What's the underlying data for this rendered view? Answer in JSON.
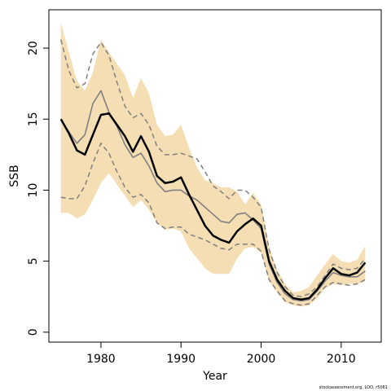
{
  "chart_data": {
    "type": "line",
    "xlabel": "Year",
    "ylabel": "SSB",
    "xlim": [
      1973.5,
      2015
    ],
    "ylim": [
      -0.7,
      22.7
    ],
    "x_ticks": [
      1980,
      1990,
      2000,
      2010
    ],
    "y_ticks": [
      0,
      5,
      10,
      15,
      20
    ],
    "x": [
      1975,
      1976,
      1977,
      1978,
      1979,
      1980,
      1981,
      1982,
      1983,
      1984,
      1985,
      1986,
      1987,
      1988,
      1989,
      1990,
      1991,
      1992,
      1993,
      1994,
      1995,
      1996,
      1997,
      1998,
      1999,
      2000,
      2001,
      2002,
      2003,
      2004,
      2005,
      2006,
      2007,
      2008,
      2009,
      2010,
      2011,
      2012,
      2013
    ],
    "series": [
      {
        "role": "confidence-band",
        "lower": [
          8.4,
          8.4,
          8.0,
          8.3,
          9.3,
          10.5,
          11.2,
          10.4,
          9.6,
          8.8,
          9.3,
          8.6,
          7.7,
          7.2,
          7.3,
          7.1,
          5.9,
          5.2,
          4.5,
          4.1,
          4.1,
          4.1,
          5.2,
          5.9,
          6.0,
          5.6,
          3.6,
          2.8,
          2.1,
          1.9,
          1.8,
          1.9,
          2.4,
          3.1,
          3.4,
          3.3,
          3.4,
          3.4,
          3.6
        ],
        "upper": [
          21.8,
          19.7,
          17.7,
          17.0,
          18.3,
          20.6,
          19.7,
          18.9,
          18.1,
          16.5,
          17.9,
          16.8,
          14.6,
          13.8,
          13.9,
          14.6,
          13.0,
          11.6,
          10.7,
          10.5,
          10.2,
          10.2,
          9.9,
          9.0,
          9.8,
          9.0,
          6.0,
          4.4,
          3.4,
          2.8,
          2.9,
          3.2,
          4.0,
          4.8,
          5.5,
          5.0,
          4.9,
          5.1,
          6.1
        ],
        "color": "#f5deb3"
      },
      {
        "role": "dashed-bound",
        "values": [
          20.6,
          18.4,
          17.2,
          17.5,
          19.6,
          20.4,
          19.5,
          17.6,
          15.9,
          15.1,
          15.4,
          14.6,
          13.1,
          12.5,
          12.5,
          12.6,
          12.4,
          12.2,
          11.3,
          10.3,
          9.9,
          9.4,
          10.0,
          10.0,
          9.5,
          8.8,
          5.8,
          4.2,
          3.2,
          2.6,
          2.5,
          2.7,
          3.2,
          4.0,
          4.8,
          4.5,
          4.4,
          4.5,
          5.2
        ],
        "color": "#808080"
      },
      {
        "role": "dashed-bound",
        "values": [
          9.5,
          9.4,
          9.4,
          10.3,
          11.9,
          13.3,
          12.6,
          11.3,
          10.2,
          9.5,
          9.7,
          9.1,
          7.7,
          7.3,
          7.4,
          7.4,
          6.9,
          6.7,
          6.5,
          6.2,
          5.9,
          5.8,
          6.2,
          6.2,
          6.2,
          5.7,
          3.7,
          2.9,
          2.2,
          2.0,
          1.9,
          2.0,
          2.6,
          3.2,
          3.5,
          3.4,
          3.3,
          3.4,
          3.7
        ],
        "color": "#808080"
      },
      {
        "role": "grey-line",
        "values": [
          15.0,
          14.1,
          13.3,
          13.9,
          16.1,
          17.0,
          15.5,
          14.5,
          13.2,
          12.3,
          12.6,
          11.7,
          10.5,
          9.9,
          10.0,
          10.0,
          9.6,
          9.3,
          8.8,
          8.3,
          7.8,
          7.7,
          8.3,
          8.4,
          7.9,
          7.3,
          4.8,
          3.5,
          2.7,
          2.3,
          2.2,
          2.3,
          2.9,
          3.6,
          4.2,
          4.0,
          3.9,
          3.9,
          4.3
        ],
        "color": "#808080"
      },
      {
        "role": "black-line",
        "values": [
          15.0,
          14.0,
          12.8,
          12.5,
          13.9,
          15.3,
          15.4,
          14.6,
          13.8,
          12.7,
          13.8,
          12.7,
          11.0,
          10.5,
          10.6,
          10.9,
          9.7,
          8.6,
          7.5,
          6.8,
          6.5,
          6.3,
          7.1,
          7.6,
          8.0,
          7.5,
          5.0,
          3.7,
          2.9,
          2.4,
          2.3,
          2.4,
          3.0,
          3.8,
          4.5,
          4.1,
          4.0,
          4.2,
          4.9
        ],
        "color": "#000000"
      }
    ],
    "grid": false
  },
  "footnote": "stockassessment.org, LOO, r5061"
}
